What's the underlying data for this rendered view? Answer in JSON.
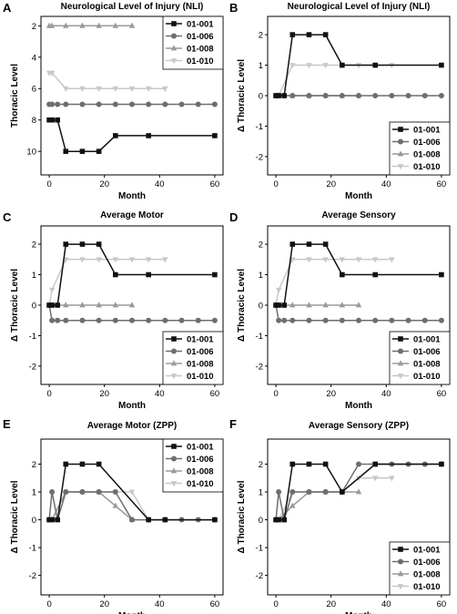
{
  "chart_data": [
    {
      "type": "line",
      "panel": "A",
      "title": "Neurological Level of Injury (NLI)",
      "xlabel": "Month",
      "ylabel": "Thoracic Level",
      "xlim": [
        -3,
        63
      ],
      "ylim": [
        11.5,
        1.4
      ],
      "y_inverted": true,
      "xticks": [
        0,
        20,
        40,
        60
      ],
      "yticks": [
        2,
        4,
        6,
        8,
        10
      ],
      "legend_position": "top-right",
      "series": [
        {
          "name": "01-001",
          "color": "#111111",
          "marker": "square",
          "x": [
            0,
            1,
            3,
            6,
            12,
            18,
            24,
            36,
            60
          ],
          "y": [
            8,
            8,
            8,
            10,
            10,
            10,
            9,
            9,
            9
          ]
        },
        {
          "name": "01-006",
          "color": "#6e6e6e",
          "marker": "circle",
          "x": [
            0,
            1,
            3,
            6,
            12,
            18,
            24,
            30,
            36,
            42,
            48,
            54,
            60
          ],
          "y": [
            7,
            7,
            7,
            7,
            7,
            7,
            7,
            7,
            7,
            7,
            7,
            7,
            7
          ]
        },
        {
          "name": "01-008",
          "color": "#9a9a9a",
          "marker": "triangle-up",
          "x": [
            0,
            1,
            6,
            12,
            18,
            24,
            30
          ],
          "y": [
            2,
            2,
            2,
            2,
            2,
            2,
            2
          ]
        },
        {
          "name": "01-010",
          "color": "#c8c8c8",
          "marker": "triangle-down",
          "x": [
            0,
            1,
            6,
            12,
            18,
            24,
            30,
            36,
            42
          ],
          "y": [
            5,
            5,
            6,
            6,
            6,
            6,
            6,
            6,
            6
          ]
        }
      ]
    },
    {
      "type": "line",
      "panel": "B",
      "title": "Neurological Level of Injury (NLI)",
      "xlabel": "Month",
      "ylabel": "Δ Thoracic Level",
      "xlim": [
        -3,
        63
      ],
      "ylim": [
        -2.6,
        2.6
      ],
      "xticks": [
        0,
        20,
        40,
        60
      ],
      "yticks": [
        -2,
        -1,
        0,
        1,
        2
      ],
      "legend_position": "bottom-right",
      "series": [
        {
          "name": "01-001",
          "color": "#111111",
          "marker": "square",
          "x": [
            0,
            1,
            3,
            6,
            12,
            18,
            24,
            36,
            60
          ],
          "y": [
            0,
            0,
            0,
            2,
            2,
            2,
            1,
            1,
            1
          ]
        },
        {
          "name": "01-006",
          "color": "#6e6e6e",
          "marker": "circle",
          "x": [
            0,
            1,
            3,
            6,
            12,
            18,
            24,
            30,
            36,
            42,
            48,
            54,
            60
          ],
          "y": [
            0,
            0,
            0,
            0,
            0,
            0,
            0,
            0,
            0,
            0,
            0,
            0,
            0
          ]
        },
        {
          "name": "01-008",
          "color": "#9a9a9a",
          "marker": "triangle-up",
          "x": [
            0,
            1,
            6,
            12,
            18,
            24,
            30
          ],
          "y": [
            0,
            0,
            0,
            0,
            0,
            0,
            0
          ]
        },
        {
          "name": "01-010",
          "color": "#c8c8c8",
          "marker": "triangle-down",
          "x": [
            0,
            1,
            6,
            12,
            18,
            24,
            30,
            36,
            42
          ],
          "y": [
            0,
            0,
            1,
            1,
            1,
            1,
            1,
            1,
            1
          ]
        }
      ]
    },
    {
      "type": "line",
      "panel": "C",
      "title": "Average Motor",
      "xlabel": "Month",
      "ylabel": "Δ Thoracic Level",
      "xlim": [
        -3,
        63
      ],
      "ylim": [
        -2.6,
        2.6
      ],
      "xticks": [
        0,
        20,
        40,
        60
      ],
      "yticks": [
        -2,
        -1,
        0,
        1,
        2
      ],
      "legend_position": "bottom-right",
      "series": [
        {
          "name": "01-001",
          "color": "#111111",
          "marker": "square",
          "x": [
            0,
            1,
            3,
            6,
            12,
            18,
            24,
            36,
            60
          ],
          "y": [
            0,
            0,
            0,
            2,
            2,
            2,
            1,
            1,
            1
          ]
        },
        {
          "name": "01-006",
          "color": "#6e6e6e",
          "marker": "circle",
          "x": [
            0,
            1,
            3,
            6,
            12,
            18,
            24,
            30,
            36,
            42,
            48,
            54,
            60
          ],
          "y": [
            0,
            -0.5,
            -0.5,
            -0.5,
            -0.5,
            -0.5,
            -0.5,
            -0.5,
            -0.5,
            -0.5,
            -0.5,
            -0.5,
            -0.5
          ]
        },
        {
          "name": "01-008",
          "color": "#9a9a9a",
          "marker": "triangle-up",
          "x": [
            0,
            1,
            6,
            12,
            18,
            24,
            30
          ],
          "y": [
            0,
            0,
            0,
            0,
            0,
            0,
            0
          ]
        },
        {
          "name": "01-010",
          "color": "#c8c8c8",
          "marker": "triangle-down",
          "x": [
            0,
            1,
            6,
            12,
            18,
            24,
            30,
            36,
            42
          ],
          "y": [
            0,
            0.5,
            1.5,
            1.5,
            1.5,
            1.5,
            1.5,
            1.5,
            1.5
          ]
        }
      ]
    },
    {
      "type": "line",
      "panel": "D",
      "title": "Average Sensory",
      "xlabel": "Month",
      "ylabel": "Δ Thoracic Level",
      "xlim": [
        -3,
        63
      ],
      "ylim": [
        -2.6,
        2.6
      ],
      "xticks": [
        0,
        20,
        40,
        60
      ],
      "yticks": [
        -2,
        -1,
        0,
        1,
        2
      ],
      "legend_position": "bottom-right",
      "series": [
        {
          "name": "01-001",
          "color": "#111111",
          "marker": "square",
          "x": [
            0,
            1,
            3,
            6,
            12,
            18,
            24,
            36,
            60
          ],
          "y": [
            0,
            0,
            0,
            2,
            2,
            2,
            1,
            1,
            1
          ]
        },
        {
          "name": "01-006",
          "color": "#6e6e6e",
          "marker": "circle",
          "x": [
            0,
            1,
            3,
            6,
            12,
            18,
            24,
            30,
            36,
            42,
            48,
            54,
            60
          ],
          "y": [
            0,
            -0.5,
            -0.5,
            -0.5,
            -0.5,
            -0.5,
            -0.5,
            -0.5,
            -0.5,
            -0.5,
            -0.5,
            -0.5,
            -0.5
          ]
        },
        {
          "name": "01-008",
          "color": "#9a9a9a",
          "marker": "triangle-up",
          "x": [
            0,
            1,
            6,
            12,
            18,
            24,
            30
          ],
          "y": [
            0,
            0,
            0,
            0,
            0,
            0,
            0
          ]
        },
        {
          "name": "01-010",
          "color": "#c8c8c8",
          "marker": "triangle-down",
          "x": [
            0,
            1,
            6,
            12,
            18,
            24,
            30,
            36,
            42
          ],
          "y": [
            0,
            0.5,
            1.5,
            1.5,
            1.5,
            1.5,
            1.5,
            1.5,
            1.5
          ]
        }
      ]
    },
    {
      "type": "line",
      "panel": "E",
      "title": "Average Motor (ZPP)",
      "xlabel": "Month",
      "ylabel": "Δ Thoracic Level",
      "xlim": [
        -3,
        63
      ],
      "ylim": [
        -2.7,
        2.9
      ],
      "xticks": [
        0,
        20,
        40,
        60
      ],
      "yticks": [
        -2,
        -1,
        0,
        1,
        2
      ],
      "legend_position": "top-right",
      "series": [
        {
          "name": "01-001",
          "color": "#111111",
          "marker": "square",
          "x": [
            0,
            1,
            3,
            6,
            12,
            18,
            36,
            42,
            60
          ],
          "y": [
            0,
            0,
            0,
            2,
            2,
            2,
            0,
            0,
            0
          ]
        },
        {
          "name": "01-006",
          "color": "#6e6e6e",
          "marker": "circle",
          "x": [
            0,
            1,
            3,
            6,
            12,
            18,
            24,
            30,
            36,
            42,
            48,
            54,
            60
          ],
          "y": [
            0,
            1,
            0,
            1,
            1,
            1,
            1,
            0,
            0,
            0,
            0,
            0,
            0
          ]
        },
        {
          "name": "01-008",
          "color": "#9a9a9a",
          "marker": "triangle-up",
          "x": [
            0,
            1,
            6,
            12,
            18,
            24,
            30
          ],
          "y": [
            0,
            0,
            1,
            1,
            1,
            0.5,
            0
          ]
        },
        {
          "name": "01-010",
          "color": "#c8c8c8",
          "marker": "triangle-down",
          "x": [
            0,
            1,
            6,
            12,
            18,
            24,
            30,
            36,
            42
          ],
          "y": [
            0,
            0,
            1,
            1,
            1,
            1,
            1,
            0,
            0
          ]
        }
      ]
    },
    {
      "type": "line",
      "panel": "F",
      "title": "Average Sensory (ZPP)",
      "xlabel": "Month",
      "ylabel": "Δ Thoracic Level",
      "xlim": [
        -3,
        63
      ],
      "ylim": [
        -2.7,
        2.9
      ],
      "xticks": [
        0,
        20,
        40,
        60
      ],
      "yticks": [
        -2,
        -1,
        0,
        1,
        2
      ],
      "legend_position": "bottom-right",
      "series": [
        {
          "name": "01-001",
          "color": "#111111",
          "marker": "square",
          "x": [
            0,
            1,
            3,
            6,
            12,
            18,
            24,
            36,
            60
          ],
          "y": [
            0,
            0,
            0,
            2,
            2,
            2,
            1,
            2,
            2
          ]
        },
        {
          "name": "01-006",
          "color": "#6e6e6e",
          "marker": "circle",
          "x": [
            0,
            1,
            3,
            6,
            12,
            18,
            24,
            30,
            36,
            42,
            48,
            54,
            60
          ],
          "y": [
            0,
            1,
            0,
            1,
            1,
            1,
            1,
            2,
            2,
            2,
            2,
            2,
            2
          ]
        },
        {
          "name": "01-008",
          "color": "#9a9a9a",
          "marker": "triangle-up",
          "x": [
            0,
            1,
            6,
            12,
            18,
            24,
            30
          ],
          "y": [
            0,
            0,
            0.5,
            1,
            1,
            1,
            1
          ]
        },
        {
          "name": "01-010",
          "color": "#c8c8c8",
          "marker": "triangle-down",
          "x": [
            0,
            1,
            6,
            12,
            18,
            24,
            30,
            36,
            42
          ],
          "y": [
            0,
            0,
            1,
            1,
            1,
            1,
            1.5,
            1.5,
            1.5
          ]
        }
      ]
    }
  ]
}
